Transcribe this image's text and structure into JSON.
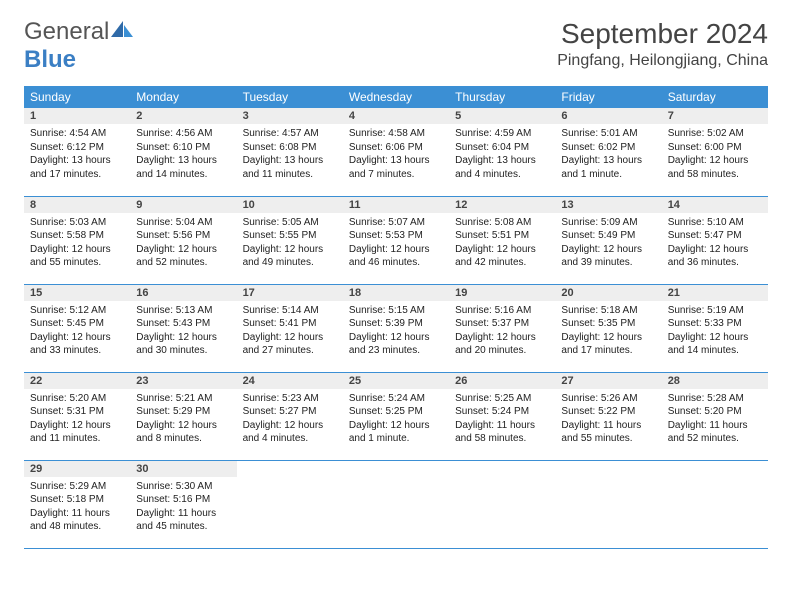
{
  "logo": {
    "text_a": "General",
    "text_b": "Blue"
  },
  "title": "September 2024",
  "location": "Pingfang, Heilongjiang, China",
  "colors": {
    "header_bg": "#3b8fd4",
    "header_text": "#ffffff",
    "daynum_bg": "#eeeeee",
    "rule": "#3b8fd4",
    "logo_blue": "#3b7fc4"
  },
  "weekdays": [
    "Sunday",
    "Monday",
    "Tuesday",
    "Wednesday",
    "Thursday",
    "Friday",
    "Saturday"
  ],
  "grid": [
    [
      {
        "n": "1",
        "sr": "4:54 AM",
        "ss": "6:12 PM",
        "dl": "13 hours and 17 minutes."
      },
      {
        "n": "2",
        "sr": "4:56 AM",
        "ss": "6:10 PM",
        "dl": "13 hours and 14 minutes."
      },
      {
        "n": "3",
        "sr": "4:57 AM",
        "ss": "6:08 PM",
        "dl": "13 hours and 11 minutes."
      },
      {
        "n": "4",
        "sr": "4:58 AM",
        "ss": "6:06 PM",
        "dl": "13 hours and 7 minutes."
      },
      {
        "n": "5",
        "sr": "4:59 AM",
        "ss": "6:04 PM",
        "dl": "13 hours and 4 minutes."
      },
      {
        "n": "6",
        "sr": "5:01 AM",
        "ss": "6:02 PM",
        "dl": "13 hours and 1 minute."
      },
      {
        "n": "7",
        "sr": "5:02 AM",
        "ss": "6:00 PM",
        "dl": "12 hours and 58 minutes."
      }
    ],
    [
      {
        "n": "8",
        "sr": "5:03 AM",
        "ss": "5:58 PM",
        "dl": "12 hours and 55 minutes."
      },
      {
        "n": "9",
        "sr": "5:04 AM",
        "ss": "5:56 PM",
        "dl": "12 hours and 52 minutes."
      },
      {
        "n": "10",
        "sr": "5:05 AM",
        "ss": "5:55 PM",
        "dl": "12 hours and 49 minutes."
      },
      {
        "n": "11",
        "sr": "5:07 AM",
        "ss": "5:53 PM",
        "dl": "12 hours and 46 minutes."
      },
      {
        "n": "12",
        "sr": "5:08 AM",
        "ss": "5:51 PM",
        "dl": "12 hours and 42 minutes."
      },
      {
        "n": "13",
        "sr": "5:09 AM",
        "ss": "5:49 PM",
        "dl": "12 hours and 39 minutes."
      },
      {
        "n": "14",
        "sr": "5:10 AM",
        "ss": "5:47 PM",
        "dl": "12 hours and 36 minutes."
      }
    ],
    [
      {
        "n": "15",
        "sr": "5:12 AM",
        "ss": "5:45 PM",
        "dl": "12 hours and 33 minutes."
      },
      {
        "n": "16",
        "sr": "5:13 AM",
        "ss": "5:43 PM",
        "dl": "12 hours and 30 minutes."
      },
      {
        "n": "17",
        "sr": "5:14 AM",
        "ss": "5:41 PM",
        "dl": "12 hours and 27 minutes."
      },
      {
        "n": "18",
        "sr": "5:15 AM",
        "ss": "5:39 PM",
        "dl": "12 hours and 23 minutes."
      },
      {
        "n": "19",
        "sr": "5:16 AM",
        "ss": "5:37 PM",
        "dl": "12 hours and 20 minutes."
      },
      {
        "n": "20",
        "sr": "5:18 AM",
        "ss": "5:35 PM",
        "dl": "12 hours and 17 minutes."
      },
      {
        "n": "21",
        "sr": "5:19 AM",
        "ss": "5:33 PM",
        "dl": "12 hours and 14 minutes."
      }
    ],
    [
      {
        "n": "22",
        "sr": "5:20 AM",
        "ss": "5:31 PM",
        "dl": "12 hours and 11 minutes."
      },
      {
        "n": "23",
        "sr": "5:21 AM",
        "ss": "5:29 PM",
        "dl": "12 hours and 8 minutes."
      },
      {
        "n": "24",
        "sr": "5:23 AM",
        "ss": "5:27 PM",
        "dl": "12 hours and 4 minutes."
      },
      {
        "n": "25",
        "sr": "5:24 AM",
        "ss": "5:25 PM",
        "dl": "12 hours and 1 minute."
      },
      {
        "n": "26",
        "sr": "5:25 AM",
        "ss": "5:24 PM",
        "dl": "11 hours and 58 minutes."
      },
      {
        "n": "27",
        "sr": "5:26 AM",
        "ss": "5:22 PM",
        "dl": "11 hours and 55 minutes."
      },
      {
        "n": "28",
        "sr": "5:28 AM",
        "ss": "5:20 PM",
        "dl": "11 hours and 52 minutes."
      }
    ],
    [
      {
        "n": "29",
        "sr": "5:29 AM",
        "ss": "5:18 PM",
        "dl": "11 hours and 48 minutes."
      },
      {
        "n": "30",
        "sr": "5:30 AM",
        "ss": "5:16 PM",
        "dl": "11 hours and 45 minutes."
      },
      null,
      null,
      null,
      null,
      null
    ]
  ],
  "labels": {
    "sunrise": "Sunrise:",
    "sunset": "Sunset:",
    "daylight": "Daylight:"
  }
}
